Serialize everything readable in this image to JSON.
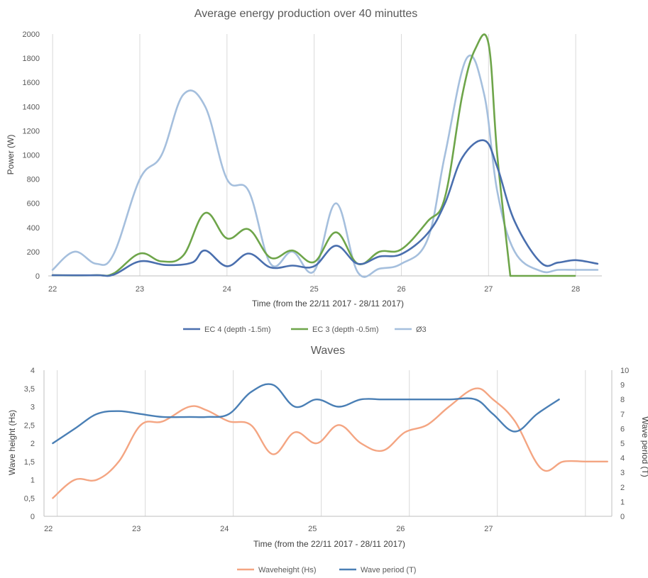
{
  "chart_data": [
    {
      "type": "line",
      "title": "Average energy production over 40 minuttes",
      "xlabel": "Time (from the 22/11 2017 - 28/11 2017)",
      "ylabel": "Power (W)",
      "xlim": [
        21.95,
        28.3
      ],
      "ylim": [
        0,
        2000
      ],
      "x_ticks": [
        22,
        23,
        24,
        25,
        26,
        27,
        28
      ],
      "y_ticks": [
        0,
        200,
        400,
        600,
        800,
        1000,
        1200,
        1400,
        1600,
        1800,
        2000
      ],
      "grid": "vertical",
      "legend": "bottom",
      "series": [
        {
          "name": "EC 4 (depth -1.5m)",
          "color": "#4a6fae",
          "x": [
            22.0,
            22.5,
            22.7,
            23.0,
            23.3,
            23.6,
            23.75,
            24.0,
            24.25,
            24.5,
            24.75,
            25.0,
            25.25,
            25.5,
            25.75,
            26.0,
            26.3,
            26.5,
            26.7,
            26.95,
            27.1,
            27.3,
            27.6,
            27.8,
            28.0,
            28.25
          ],
          "values": [
            5,
            5,
            10,
            120,
            90,
            110,
            210,
            80,
            185,
            70,
            85,
            80,
            250,
            100,
            160,
            180,
            350,
            600,
            980,
            1120,
            900,
            450,
            110,
            110,
            130,
            100
          ]
        },
        {
          "name": "EC 3 (depth -0.5m)",
          "color": "#6ea54a",
          "x": [
            22.0,
            22.5,
            22.7,
            23.0,
            23.25,
            23.5,
            23.75,
            24.0,
            24.25,
            24.5,
            24.75,
            25.0,
            25.25,
            25.5,
            25.75,
            26.0,
            26.3,
            26.5,
            26.7,
            26.85,
            27.0,
            27.1,
            27.25
          ],
          "values": [
            5,
            5,
            20,
            185,
            120,
            170,
            520,
            310,
            385,
            150,
            210,
            115,
            360,
            100,
            200,
            220,
            450,
            650,
            1500,
            1880,
            1920,
            1000,
            0
          ]
        },
        {
          "name": "Ø3",
          "color": "#a5bfdd",
          "x": [
            22.0,
            22.25,
            22.5,
            22.7,
            23.0,
            23.25,
            23.5,
            23.75,
            24.0,
            24.25,
            24.5,
            24.75,
            25.0,
            25.25,
            25.5,
            25.75,
            26.0,
            26.3,
            26.5,
            26.75,
            26.95,
            27.1,
            27.3,
            27.6,
            27.8,
            28.0,
            28.25
          ],
          "values": [
            50,
            200,
            100,
            180,
            800,
            1000,
            1500,
            1400,
            800,
            700,
            100,
            200,
            40,
            600,
            30,
            60,
            100,
            300,
            1000,
            1800,
            1500,
            700,
            200,
            40,
            50,
            50,
            50
          ]
        }
      ]
    },
    {
      "type": "line",
      "title": "Waves",
      "xlabel": "Time (from the 22/11 2017 - 28/11 2017)",
      "ylabel": "Wave height (Hs)",
      "ylabel_right": "Wave period (T)",
      "xlim": [
        21.95,
        28.4
      ],
      "ylim": [
        0,
        4
      ],
      "ylim_right": [
        0,
        10
      ],
      "x_ticks": [
        22,
        23,
        24,
        25,
        26,
        27
      ],
      "y_ticks": [
        "0",
        "0,5",
        "1",
        "1,5",
        "2",
        "2,5",
        "3",
        "3,5",
        "4"
      ],
      "y_ticks_right": [
        0,
        1,
        2,
        3,
        4,
        5,
        6,
        7,
        8,
        9,
        10
      ],
      "grid": "vertical",
      "legend": "bottom",
      "series": [
        {
          "name": "Waveheight (Hs)",
          "color": "#f4a582",
          "axis": "left",
          "x": [
            22.05,
            22.3,
            22.55,
            22.8,
            23.05,
            23.3,
            23.6,
            23.8,
            24.05,
            24.3,
            24.55,
            24.8,
            25.05,
            25.3,
            25.55,
            25.8,
            26.05,
            26.3,
            26.55,
            26.85,
            27.05,
            27.3,
            27.6,
            27.85,
            28.1,
            28.35
          ],
          "values": [
            0.5,
            1.0,
            1.0,
            1.5,
            2.5,
            2.6,
            3.0,
            2.9,
            2.6,
            2.5,
            1.7,
            2.3,
            2.0,
            2.5,
            2.0,
            1.8,
            2.3,
            2.5,
            3.0,
            3.5,
            3.2,
            2.6,
            1.3,
            1.5,
            1.5,
            1.5
          ]
        },
        {
          "name": "Wave period (T)",
          "color": "#4a7fb5",
          "axis": "right",
          "x": [
            22.05,
            22.3,
            22.55,
            22.8,
            23.05,
            23.3,
            23.6,
            23.8,
            24.05,
            24.3,
            24.55,
            24.8,
            25.05,
            25.3,
            25.55,
            25.8,
            26.05,
            26.3,
            26.55,
            26.85,
            27.05,
            27.3,
            27.55,
            27.8
          ],
          "values": [
            5.0,
            6.0,
            7.0,
            7.2,
            7.0,
            6.8,
            6.8,
            6.8,
            7.0,
            8.5,
            9.0,
            7.5,
            8.0,
            7.5,
            8.0,
            8.0,
            8.0,
            8.0,
            8.0,
            8.0,
            7.0,
            5.8,
            7.0,
            8.0
          ]
        }
      ]
    }
  ]
}
